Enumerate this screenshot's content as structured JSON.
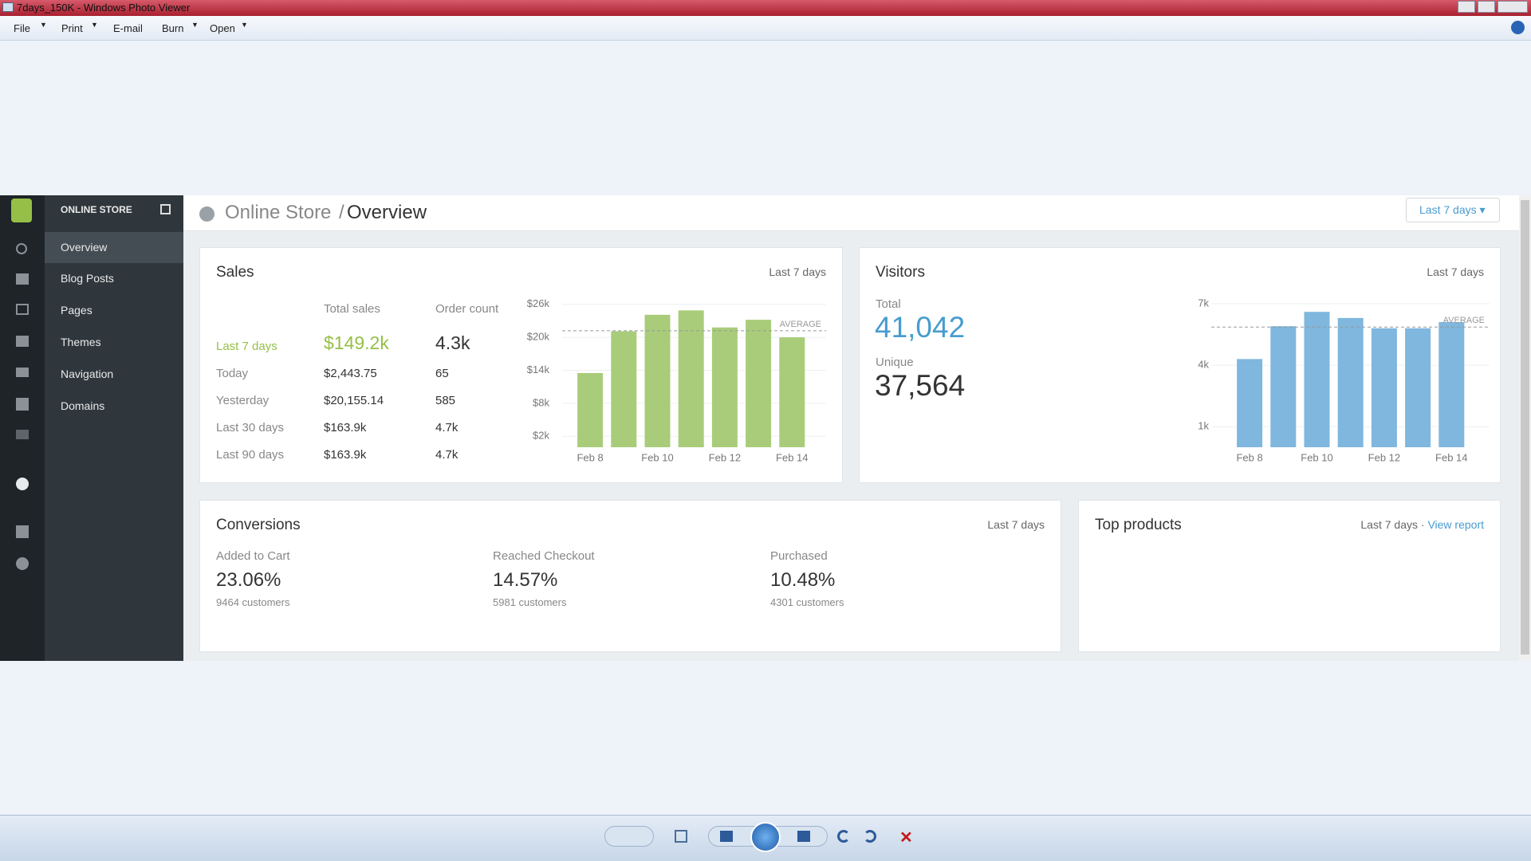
{
  "window": {
    "title": "7days_150K - Windows Photo Viewer",
    "menu": [
      "File",
      "Print",
      "E-mail",
      "Burn",
      "Open"
    ]
  },
  "sidebar": {
    "store_label": "ONLINE STORE",
    "nav": [
      "Overview",
      "Blog Posts",
      "Pages",
      "Themes",
      "Navigation",
      "Domains"
    ]
  },
  "header": {
    "parent": "Online Store",
    "separator": "/",
    "current": "Overview",
    "range_button": "Last 7 days"
  },
  "sales": {
    "title": "Sales",
    "range": "Last 7 days",
    "columns": [
      "Total sales",
      "Order count"
    ],
    "rows": [
      [
        "Last 7 days",
        "$149.2k",
        "4.3k"
      ],
      [
        "Today",
        "$2,443.75",
        "65"
      ],
      [
        "Yesterday",
        "$20,155.14",
        "585"
      ],
      [
        "Last 30 days",
        "$163.9k",
        "4.7k"
      ],
      [
        "Last 90 days",
        "$163.9k",
        "4.7k"
      ]
    ],
    "chart": {
      "type": "bar",
      "categories": [
        "Feb 8",
        null,
        "Feb 10",
        null,
        "Feb 12",
        null,
        "Feb 14"
      ],
      "values": [
        13500,
        21100,
        24100,
        24900,
        21800,
        23200,
        20000
      ],
      "color": "#a9cc7a",
      "ylim": [
        0,
        28000
      ],
      "yticks": [
        {
          "value": 2000,
          "label": "$2k"
        },
        {
          "value": 8000,
          "label": "$8k"
        },
        {
          "value": 14000,
          "label": "$14k"
        },
        {
          "value": 20000,
          "label": "$20k"
        },
        {
          "value": 26000,
          "label": "$26k"
        }
      ],
      "average": 21200,
      "average_label": "AVERAGE"
    }
  },
  "visitors": {
    "title": "Visitors",
    "range": "Last 7 days",
    "total_label": "Total",
    "total": "41,042",
    "unique_label": "Unique",
    "unique": "37,564",
    "chart": {
      "type": "bar",
      "categories": [
        "Feb 8",
        null,
        "Feb 10",
        null,
        "Feb 12",
        null,
        "Feb 14"
      ],
      "values": [
        4300,
        5900,
        6600,
        6300,
        5800,
        5800,
        6100
      ],
      "color": "#7fb7de",
      "ylim": [
        0,
        7500
      ],
      "yticks": [
        {
          "value": 1000,
          "label": "1k"
        },
        {
          "value": 4000,
          "label": "4k"
        },
        {
          "value": 7000,
          "label": "7k"
        }
      ],
      "average": 5860,
      "average_label": "AVERAGE"
    }
  },
  "conversions": {
    "title": "Conversions",
    "range": "Last 7 days",
    "items": [
      {
        "label": "Added to Cart",
        "rate": "23.06%",
        "customers": "9464 customers"
      },
      {
        "label": "Reached Checkout",
        "rate": "14.57%",
        "customers": "5981 customers"
      },
      {
        "label": "Purchased",
        "rate": "10.48%",
        "customers": "4301 customers"
      }
    ]
  },
  "top_products": {
    "title": "Top products",
    "range": "Last 7 days",
    "separator": "·",
    "link": "View report"
  }
}
